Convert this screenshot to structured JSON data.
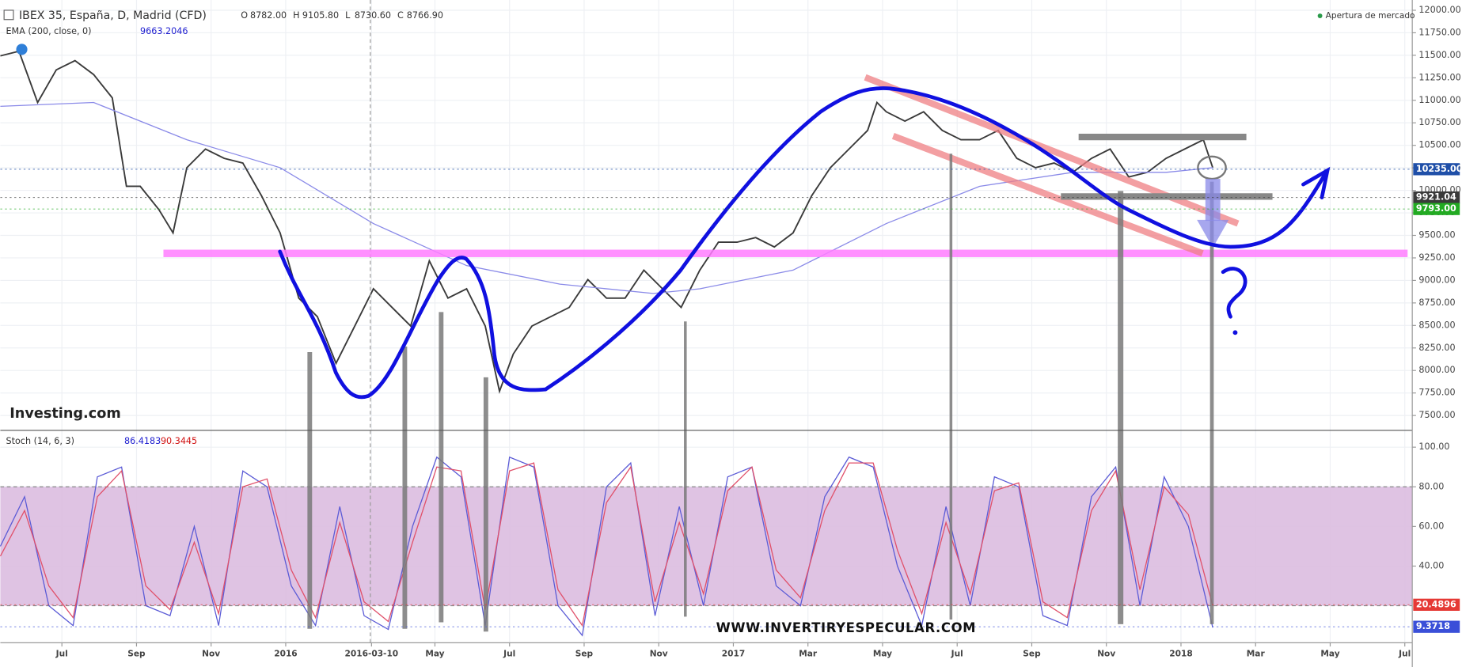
{
  "header": {
    "symbol": "IBEX 35, España, D, Madrid (CFD)",
    "ohlc": [
      "O",
      "8782.00",
      "H",
      "9105.80",
      "L",
      "8730.60",
      "C",
      "8766.90"
    ],
    "ema_label": "EMA (200, close, 0)",
    "ema_value": "9663.2046",
    "stoch_label": "Stoch (14, 6, 3)",
    "stoch_k": "86.4183",
    "stoch_d": "90.3445",
    "market_status": "Apertura de mercado",
    "logo": "Investing.com",
    "watermark": "WWW.INVERTIRYESPECULAR.COM"
  },
  "chart_data": [
    {
      "type": "line",
      "xlim": [
        -0.65,
        37.2
      ],
      "ylim": [
        7345,
        12114
      ],
      "yticks": [
        {
          "value": 7500,
          "label": "7500.00"
        },
        {
          "value": 7750,
          "label": "7750.00"
        },
        {
          "value": 8000,
          "label": "8000.00"
        },
        {
          "value": 8250,
          "label": "8250.00"
        },
        {
          "value": 8500,
          "label": "8500.00"
        },
        {
          "value": 8750,
          "label": "8750.00"
        },
        {
          "value": 9000,
          "label": "9000.00"
        },
        {
          "value": 9250,
          "label": "9250.00"
        },
        {
          "value": 9500,
          "label": "9500.00"
        },
        {
          "value": 9750,
          "label": "9750.00"
        },
        {
          "value": 10000,
          "label": "10000.00"
        },
        {
          "value": 10250,
          "label": "10250.00"
        },
        {
          "value": 10500,
          "label": "10500.00"
        },
        {
          "value": 10750,
          "label": "10750.00"
        },
        {
          "value": 11000,
          "label": "11000.00"
        },
        {
          "value": 11250,
          "label": "11250.00"
        },
        {
          "value": 11500,
          "label": "11500.00"
        },
        {
          "value": 11750,
          "label": "11750.00"
        },
        {
          "value": 12000,
          "label": "12000.00"
        }
      ],
      "x": [
        -0.65,
        -0.15,
        0.35,
        0.85,
        1.35,
        1.85,
        2.35,
        2.73,
        3.1,
        3.6,
        3.98,
        4.35,
        4.85,
        5.35,
        5.85,
        6.35,
        6.85,
        7.35,
        7.85,
        8.35,
        8.85,
        9.35,
        9.85,
        10.35,
        10.85,
        11.35,
        11.85,
        12.35,
        12.73,
        13.1,
        13.6,
        14.1,
        14.6,
        15.1,
        15.6,
        16.1,
        16.6,
        17.1,
        17.6,
        18.1,
        18.6,
        19.1,
        19.6,
        20.1,
        20.6,
        21.1,
        21.6,
        22.1,
        22.6,
        22.85,
        23.1,
        23.6,
        24.1,
        24.6,
        25.1,
        25.6,
        26.1,
        26.6,
        27.1,
        27.6,
        28.1,
        28.6,
        29.1,
        29.6,
        30.1,
        30.6,
        31.1,
        31.6,
        31.85
      ],
      "series": [
        {
          "name": "IBEX 35",
          "color": "#3a3a3a",
          "values": [
            11493,
            11545,
            10976,
            11338,
            11441,
            11286,
            11028,
            10045,
            10045,
            9786,
            9528,
            10252,
            10459,
            10355,
            10304,
            9941,
            9528,
            8804,
            8597,
            8079,
            8493,
            8907,
            8700,
            8493,
            9217,
            8804,
            8907,
            8493,
            7769,
            8183,
            8493,
            8597,
            8700,
            9010,
            8804,
            8804,
            9114,
            8907,
            8700,
            9114,
            9424,
            9424,
            9476,
            9372,
            9528,
            9941,
            10252,
            10459,
            10666,
            10976,
            10873,
            10769,
            10873,
            10666,
            10562,
            10562,
            10666,
            10355,
            10252,
            10304,
            10200,
            10355,
            10459,
            10148,
            10200,
            10355,
            10459,
            10562,
            10252
          ]
        },
        {
          "name": "EMA",
          "color": "#8a8ae8",
          "x": [
            -0.65,
            1.85,
            4.35,
            6.85,
            9.35,
            11.85,
            14.35,
            16.85,
            18.1,
            20.6,
            23.1,
            25.6,
            28.1,
            30.6,
            31.85
          ],
          "values": [
            10934,
            10976,
            10562,
            10252,
            9631,
            9165,
            8959,
            8855,
            8907,
            9114,
            9631,
            10045,
            10200,
            10200,
            10252
          ]
        }
      ],
      "price_tags": [
        {
          "value": 10235,
          "label": "10235.00",
          "color": "#1f4fa8"
        },
        {
          "value": 9921.04,
          "label": "9921.04",
          "color": "#3a3a3a"
        },
        {
          "value": 9793,
          "label": "9793.00",
          "color": "#22aa22"
        }
      ]
    },
    {
      "type": "line",
      "xlim": [
        -0.65,
        37.2
      ],
      "ylim": [
        1.3,
        108
      ],
      "yticks": [
        {
          "value": 40,
          "label": "40.00"
        },
        {
          "value": 60,
          "label": "60.00"
        },
        {
          "value": 80,
          "label": "80.00"
        },
        {
          "value": 100,
          "label": "100.00"
        }
      ],
      "xticks": [
        {
          "value": 1,
          "label": "Jul"
        },
        {
          "value": 3,
          "label": "Sep"
        },
        {
          "value": 5,
          "label": "Nov"
        },
        {
          "value": 7,
          "label": "2016"
        },
        {
          "value": 9.3,
          "label": "2016-03-10"
        },
        {
          "value": 11,
          "label": "May"
        },
        {
          "value": 13,
          "label": "Jul"
        },
        {
          "value": 15,
          "label": "Sep"
        },
        {
          "value": 17,
          "label": "Nov"
        },
        {
          "value": 19,
          "label": "2017"
        },
        {
          "value": 21,
          "label": "Mar"
        },
        {
          "value": 23,
          "label": "May"
        },
        {
          "value": 25,
          "label": "Jul"
        },
        {
          "value": 27,
          "label": "Sep"
        },
        {
          "value": 29,
          "label": "Nov"
        },
        {
          "value": 31,
          "label": "2018"
        },
        {
          "value": 33,
          "label": "Mar"
        },
        {
          "value": 35,
          "label": "May"
        },
        {
          "value": 37,
          "label": "Jul"
        }
      ],
      "band": [
        20,
        80
      ],
      "band_color": "#dcbde0",
      "x": [
        -0.65,
        0,
        0.65,
        1.3,
        1.95,
        2.6,
        3.25,
        3.9,
        4.55,
        5.2,
        5.85,
        6.5,
        7.15,
        7.8,
        8.45,
        9.1,
        9.75,
        10.4,
        11.05,
        11.7,
        12.35,
        13,
        13.65,
        14.3,
        14.95,
        15.6,
        16.25,
        16.9,
        17.55,
        18.2,
        18.85,
        19.5,
        20.15,
        20.8,
        21.45,
        22.1,
        22.75,
        23.4,
        24.05,
        24.7,
        25.35,
        26,
        26.65,
        27.3,
        27.95,
        28.6,
        29.25,
        29.9,
        30.55,
        31.2,
        31.85
      ],
      "series": [
        {
          "name": "%K",
          "color": "#5b5bd6",
          "values": [
            50,
            75,
            20,
            10,
            85,
            90,
            20,
            15,
            60,
            10,
            88,
            80,
            30,
            10,
            70,
            15,
            8,
            60,
            95,
            85,
            10,
            95,
            90,
            20,
            5,
            80,
            92,
            15,
            70,
            20,
            85,
            90,
            30,
            20,
            75,
            95,
            90,
            40,
            10,
            70,
            20,
            85,
            80,
            15,
            10,
            75,
            90,
            20,
            85,
            60,
            9
          ]
        },
        {
          "name": "%D",
          "color": "#e0506a",
          "values": [
            45,
            68,
            30,
            14,
            75,
            88,
            30,
            18,
            52,
            16,
            80,
            84,
            38,
            14,
            62,
            22,
            12,
            52,
            90,
            88,
            18,
            88,
            92,
            28,
            10,
            72,
            90,
            22,
            62,
            26,
            78,
            90,
            38,
            24,
            68,
            92,
            92,
            48,
            16,
            62,
            26,
            78,
            82,
            22,
            14,
            68,
            88,
            28,
            80,
            66,
            20
          ]
        }
      ],
      "price_tags": [
        {
          "value": 20.4896,
          "label": "20.4896",
          "color": "#e53935"
        },
        {
          "value": 9.3718,
          "label": "9.3718",
          "color": "#3a4fd8"
        }
      ]
    }
  ]
}
